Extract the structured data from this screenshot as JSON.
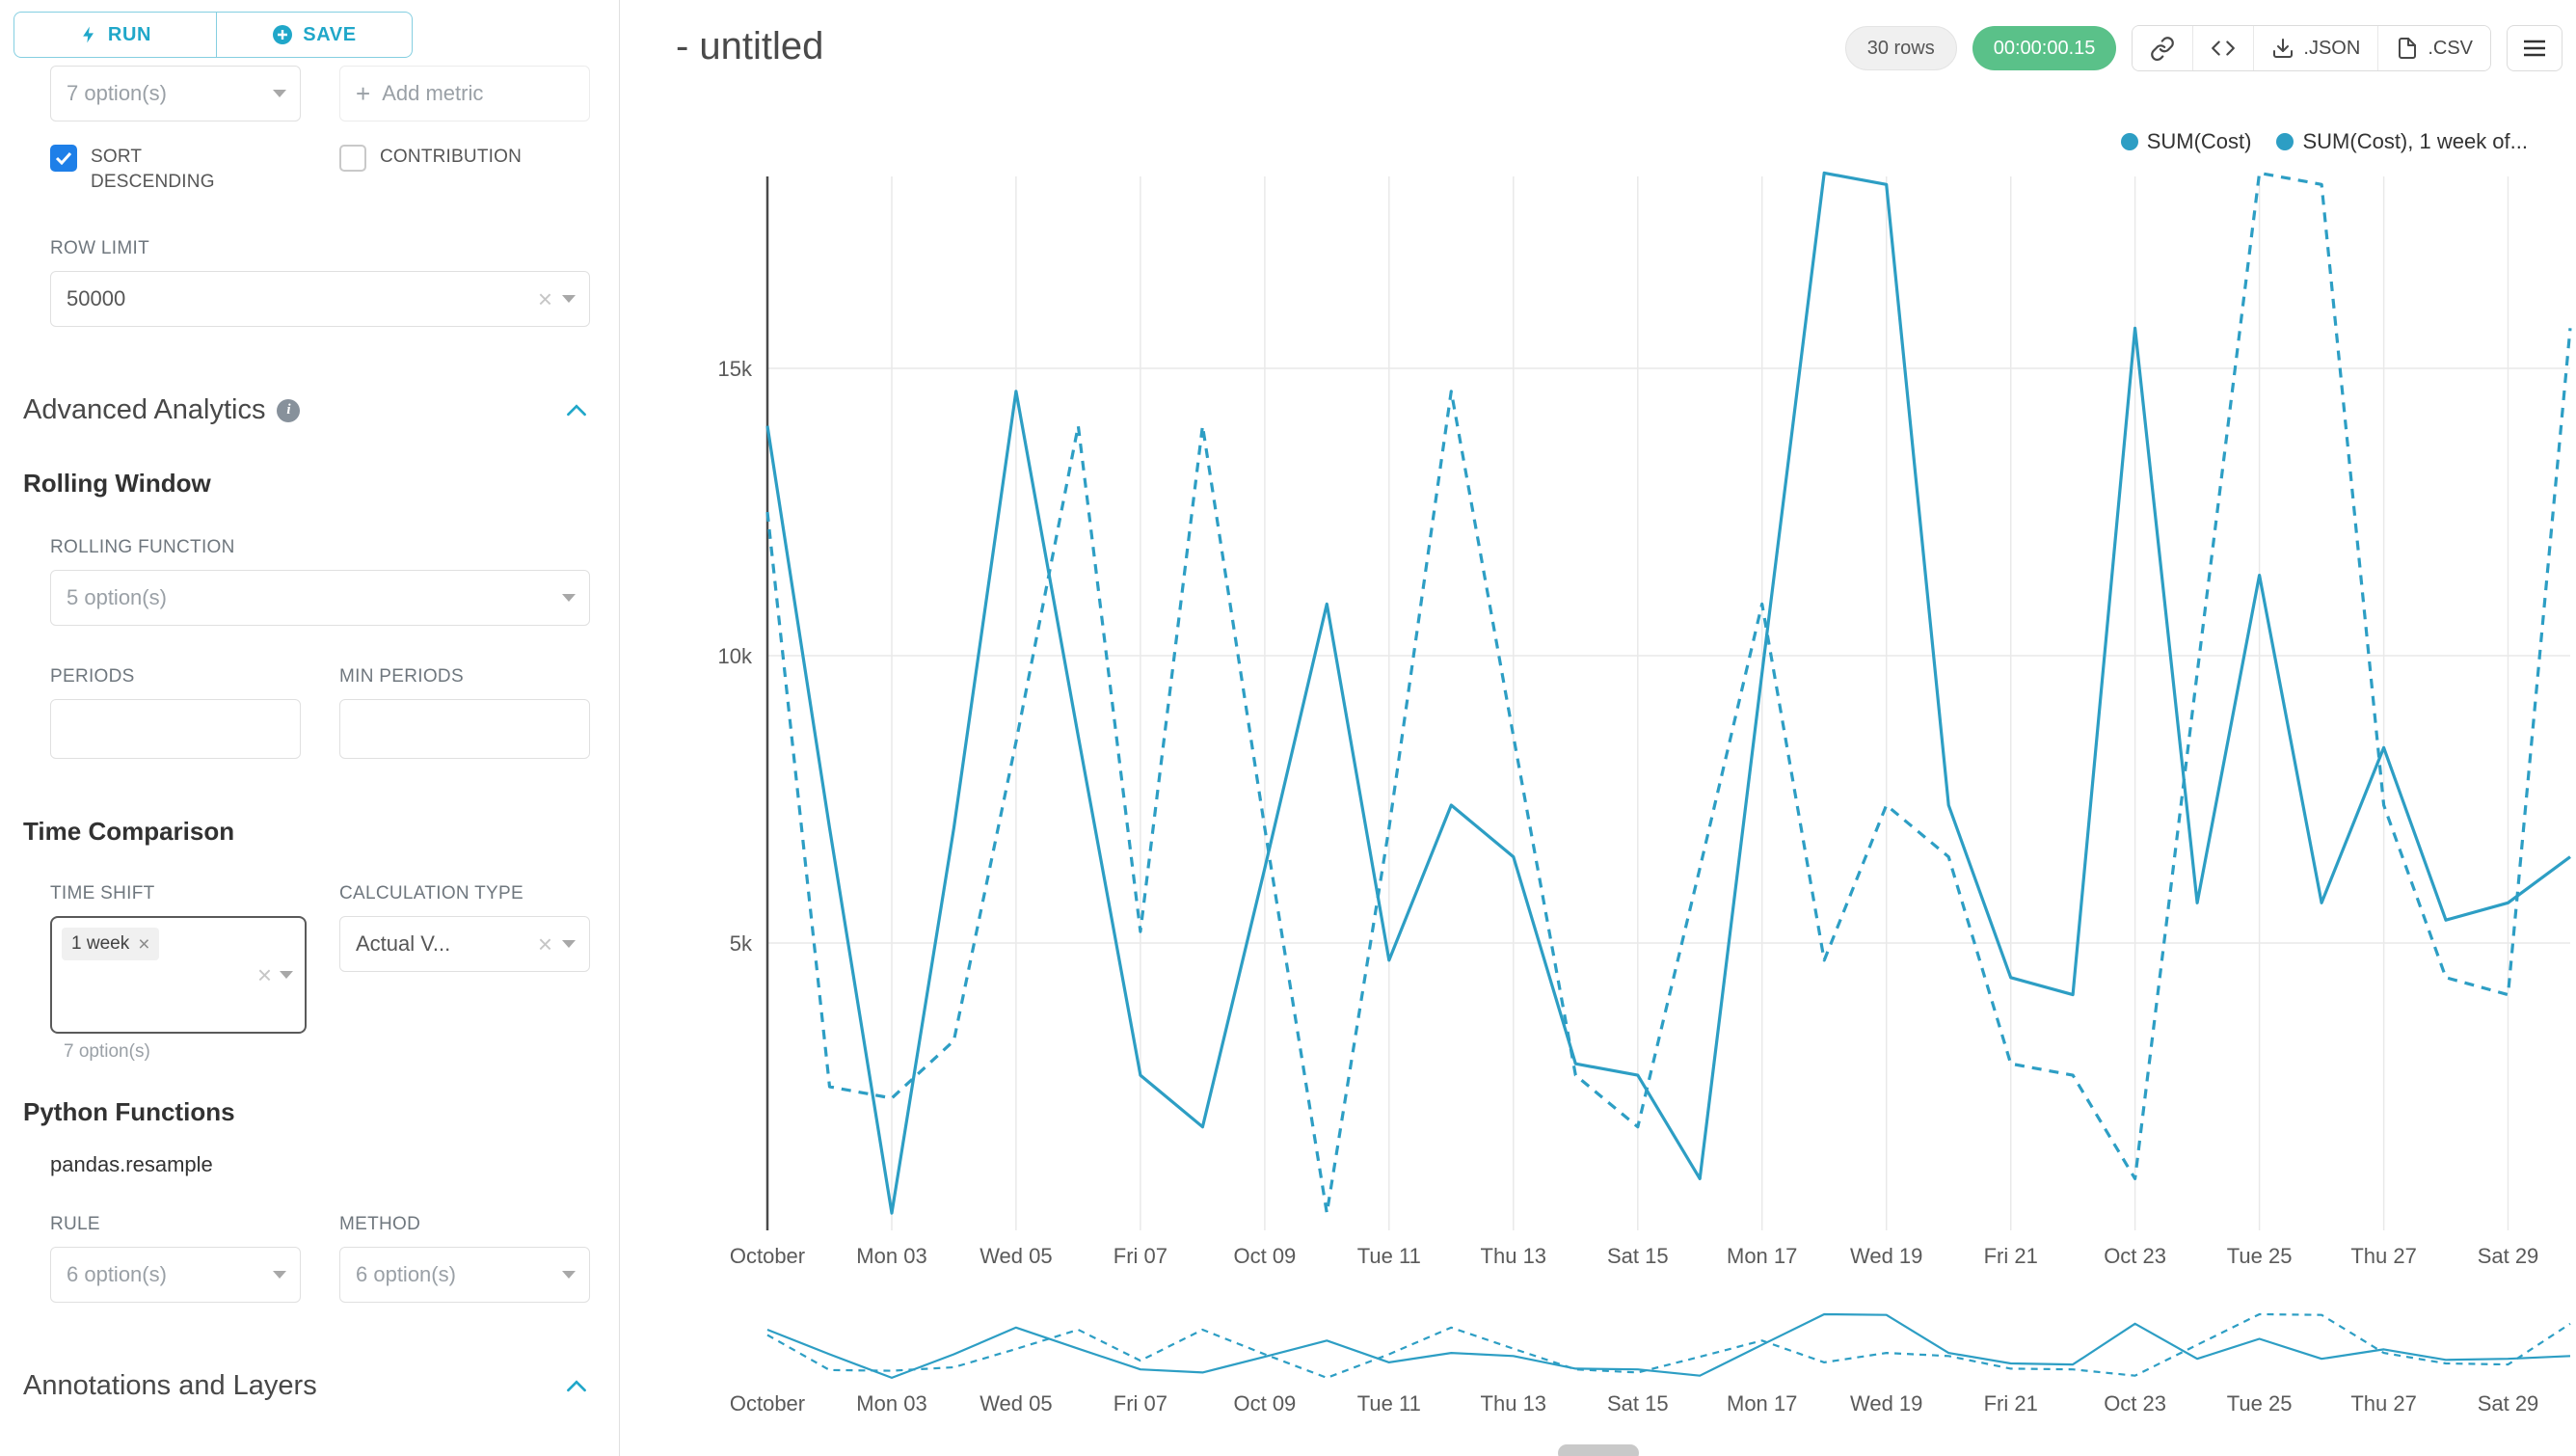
{
  "colors": {
    "accent": "#20A7C9",
    "series": "#2D9EC4",
    "checkbox": "#1E7FE8",
    "timer_bg": "#5AC189"
  },
  "icons": {
    "run": "lightning-bolt-icon",
    "save": "plus-circle-icon",
    "share": "link-icon",
    "embed": "code-icon",
    "json_export": "download-icon",
    "csv_export": "file-icon",
    "more": "hamburger-menu-icon",
    "section_info": "info-circle-icon",
    "collapse": "chevron-up-icon",
    "select_caret": "chevron-down-icon",
    "clear": "x-icon"
  },
  "toolbar": {
    "run_label": "RUN",
    "save_label": "SAVE"
  },
  "sidebar": {
    "metrics_select_value": "7 option(s)",
    "add_metric_label": "Add metric",
    "sort_descending_label": "SORT DESCENDING",
    "contribution_label": "CONTRIBUTION",
    "row_limit_label": "ROW LIMIT",
    "row_limit_value": "50000",
    "advanced_analytics_title": "Advanced Analytics",
    "rolling_window_title": "Rolling Window",
    "rolling_function_label": "ROLLING FUNCTION",
    "rolling_function_value": "5 option(s)",
    "periods_label": "PERIODS",
    "min_periods_label": "MIN PERIODS",
    "time_comparison_title": "Time Comparison",
    "time_shift_label": "TIME SHIFT",
    "time_shift_tag": "1 week",
    "time_shift_helper": "7 option(s)",
    "calculation_type_label": "CALCULATION TYPE",
    "calculation_type_value": "Actual V...",
    "python_functions_title": "Python Functions",
    "pandas_resample_label": "pandas.resample",
    "rule_label": "RULE",
    "rule_value": "6 option(s)",
    "method_label": "METHOD",
    "method_value": "6 option(s)",
    "annotations_title": "Annotations and Layers"
  },
  "header": {
    "title": "- untitled",
    "rows_badge": "30 rows",
    "timer": "00:00:00.15",
    "json_label": ".JSON",
    "csv_label": ".CSV"
  },
  "legend": [
    {
      "label": "SUM(Cost)"
    },
    {
      "label": "SUM(Cost), 1 week of..."
    }
  ],
  "chart_data": {
    "type": "line",
    "title": "",
    "xlabel": "",
    "ylabel": "",
    "grid": true,
    "overview_strip": true,
    "legend_position": "top-right",
    "x_tick_labels": [
      "October",
      "Mon 03",
      "Wed 05",
      "Fri 07",
      "Oct 09",
      "Tue 11",
      "Thu 13",
      "Sat 15",
      "Mon 17",
      "Wed 19",
      "Fri 21",
      "Oct 23",
      "Tue 25",
      "Thu 27",
      "Sat 29"
    ],
    "x_tick_interval_days": 2,
    "n_points": 30,
    "ylim": [
      0,
      18400
    ],
    "y_ticks": [
      {
        "v": 5000,
        "label": "5k"
      },
      {
        "v": 10000,
        "label": "10k"
      },
      {
        "v": 15000,
        "label": "15k"
      }
    ],
    "series": [
      {
        "name": "SUM(Cost)",
        "style": "solid",
        "values": [
          14000,
          7000,
          300,
          7000,
          14600,
          8600,
          2700,
          1800,
          6300,
          10900,
          4700,
          7400,
          6500,
          2900,
          2700,
          900,
          9700,
          18400,
          18200,
          7400,
          4400,
          4100,
          15700,
          5700,
          11400,
          5700,
          8400,
          5400,
          5700,
          6500
        ]
      },
      {
        "name": "SUM(Cost), 1 week of...",
        "style": "dashed",
        "values": [
          12500,
          2500,
          2300,
          3300,
          8500,
          14000,
          5200,
          14000,
          7000,
          300,
          7000,
          14600,
          8600,
          2700,
          1800,
          6300,
          10900,
          4700,
          7400,
          6500,
          2900,
          2700,
          900,
          9700,
          18400,
          18200,
          7400,
          4400,
          4100,
          15700
        ]
      }
    ]
  }
}
